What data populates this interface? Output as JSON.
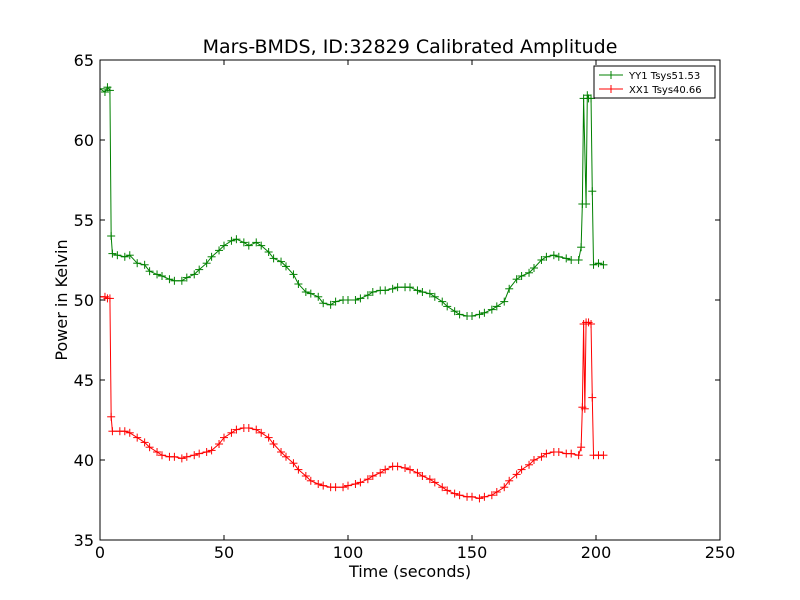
{
  "chart_data": {
    "type": "line",
    "title": "Mars-BMDS, ID:32829 Calibrated Amplitude",
    "xlabel": "Time (seconds)",
    "ylabel": "Power in Kelvin",
    "xlim": [
      0,
      250
    ],
    "ylim": [
      35,
      65
    ],
    "xticks": [
      "0",
      "50",
      "100",
      "150",
      "200",
      "250"
    ],
    "yticks": [
      "35",
      "40",
      "45",
      "50",
      "55",
      "60",
      "65"
    ],
    "grid": false,
    "legend_position": "top-right",
    "series": [
      {
        "name": "YY1 Tsys51.53",
        "color": "#008000",
        "marker": "+",
        "points": [
          [
            0,
            63.2
          ],
          [
            2,
            63.0
          ],
          [
            3,
            63.3
          ],
          [
            4,
            63.1
          ],
          [
            4.5,
            54.0
          ],
          [
            5,
            52.9
          ],
          [
            7,
            52.8
          ],
          [
            10,
            52.7
          ],
          [
            12,
            52.8
          ],
          [
            15,
            52.3
          ],
          [
            18,
            52.2
          ],
          [
            20,
            51.8
          ],
          [
            23,
            51.6
          ],
          [
            25,
            51.5
          ],
          [
            28,
            51.3
          ],
          [
            30,
            51.2
          ],
          [
            33,
            51.2
          ],
          [
            35,
            51.4
          ],
          [
            38,
            51.6
          ],
          [
            40,
            51.9
          ],
          [
            43,
            52.3
          ],
          [
            45,
            52.7
          ],
          [
            48,
            53.1
          ],
          [
            50,
            53.4
          ],
          [
            53,
            53.7
          ],
          [
            55,
            53.8
          ],
          [
            58,
            53.6
          ],
          [
            60,
            53.4
          ],
          [
            63,
            53.6
          ],
          [
            65,
            53.4
          ],
          [
            68,
            53.0
          ],
          [
            70,
            52.6
          ],
          [
            73,
            52.4
          ],
          [
            75,
            52.1
          ],
          [
            78,
            51.6
          ],
          [
            80,
            51.0
          ],
          [
            83,
            50.5
          ],
          [
            85,
            50.4
          ],
          [
            88,
            50.2
          ],
          [
            90,
            49.8
          ],
          [
            93,
            49.7
          ],
          [
            95,
            49.9
          ],
          [
            98,
            50.0
          ],
          [
            100,
            50.0
          ],
          [
            103,
            50.0
          ],
          [
            105,
            50.1
          ],
          [
            108,
            50.3
          ],
          [
            110,
            50.5
          ],
          [
            113,
            50.6
          ],
          [
            115,
            50.6
          ],
          [
            118,
            50.7
          ],
          [
            120,
            50.8
          ],
          [
            123,
            50.8
          ],
          [
            125,
            50.8
          ],
          [
            128,
            50.6
          ],
          [
            130,
            50.5
          ],
          [
            133,
            50.4
          ],
          [
            135,
            50.2
          ],
          [
            138,
            49.9
          ],
          [
            140,
            49.6
          ],
          [
            143,
            49.3
          ],
          [
            145,
            49.1
          ],
          [
            148,
            49.0
          ],
          [
            150,
            49.0
          ],
          [
            153,
            49.1
          ],
          [
            155,
            49.2
          ],
          [
            158,
            49.4
          ],
          [
            160,
            49.6
          ],
          [
            163,
            49.9
          ],
          [
            165,
            50.7
          ],
          [
            168,
            51.3
          ],
          [
            170,
            51.5
          ],
          [
            173,
            51.7
          ],
          [
            175,
            52.0
          ],
          [
            178,
            52.5
          ],
          [
            180,
            52.7
          ],
          [
            183,
            52.8
          ],
          [
            185,
            52.7
          ],
          [
            188,
            52.6
          ],
          [
            190,
            52.5
          ],
          [
            193,
            52.5
          ],
          [
            194,
            53.3
          ],
          [
            194.5,
            56.0
          ],
          [
            195,
            62.6
          ],
          [
            196,
            56.0
          ],
          [
            196.5,
            62.8
          ],
          [
            197,
            62.6
          ],
          [
            198,
            62.6
          ],
          [
            198.5,
            56.8
          ],
          [
            199,
            52.2
          ],
          [
            201,
            52.3
          ],
          [
            203,
            52.2
          ]
        ]
      },
      {
        "name": "XX1 Tsys40.66",
        "color": "#ff0000",
        "marker": "+",
        "points": [
          [
            0,
            50.2
          ],
          [
            2,
            50.2
          ],
          [
            3,
            50.1
          ],
          [
            4,
            50.1
          ],
          [
            4.5,
            42.7
          ],
          [
            5,
            41.8
          ],
          [
            8,
            41.8
          ],
          [
            10,
            41.8
          ],
          [
            12,
            41.7
          ],
          [
            15,
            41.4
          ],
          [
            18,
            41.1
          ],
          [
            20,
            40.8
          ],
          [
            23,
            40.5
          ],
          [
            25,
            40.3
          ],
          [
            28,
            40.2
          ],
          [
            30,
            40.2
          ],
          [
            33,
            40.1
          ],
          [
            35,
            40.2
          ],
          [
            38,
            40.3
          ],
          [
            40,
            40.4
          ],
          [
            43,
            40.5
          ],
          [
            45,
            40.6
          ],
          [
            48,
            41.0
          ],
          [
            50,
            41.4
          ],
          [
            53,
            41.7
          ],
          [
            55,
            41.9
          ],
          [
            58,
            42.0
          ],
          [
            60,
            42.0
          ],
          [
            63,
            41.9
          ],
          [
            65,
            41.7
          ],
          [
            68,
            41.4
          ],
          [
            70,
            41.0
          ],
          [
            73,
            40.5
          ],
          [
            75,
            40.2
          ],
          [
            78,
            39.8
          ],
          [
            80,
            39.4
          ],
          [
            83,
            39.0
          ],
          [
            85,
            38.7
          ],
          [
            88,
            38.5
          ],
          [
            90,
            38.4
          ],
          [
            93,
            38.3
          ],
          [
            95,
            38.3
          ],
          [
            98,
            38.3
          ],
          [
            100,
            38.4
          ],
          [
            103,
            38.5
          ],
          [
            105,
            38.6
          ],
          [
            108,
            38.8
          ],
          [
            110,
            39.0
          ],
          [
            113,
            39.2
          ],
          [
            115,
            39.4
          ],
          [
            118,
            39.6
          ],
          [
            120,
            39.6
          ],
          [
            123,
            39.5
          ],
          [
            125,
            39.4
          ],
          [
            128,
            39.2
          ],
          [
            130,
            39.0
          ],
          [
            133,
            38.8
          ],
          [
            135,
            38.6
          ],
          [
            138,
            38.3
          ],
          [
            140,
            38.1
          ],
          [
            143,
            37.9
          ],
          [
            145,
            37.8
          ],
          [
            148,
            37.7
          ],
          [
            150,
            37.7
          ],
          [
            153,
            37.6
          ],
          [
            155,
            37.7
          ],
          [
            158,
            37.8
          ],
          [
            160,
            38.0
          ],
          [
            163,
            38.3
          ],
          [
            165,
            38.7
          ],
          [
            168,
            39.1
          ],
          [
            170,
            39.4
          ],
          [
            173,
            39.7
          ],
          [
            175,
            40.0
          ],
          [
            178,
            40.2
          ],
          [
            180,
            40.4
          ],
          [
            183,
            40.5
          ],
          [
            185,
            40.5
          ],
          [
            188,
            40.4
          ],
          [
            190,
            40.4
          ],
          [
            193,
            40.3
          ],
          [
            194,
            40.8
          ],
          [
            194.5,
            43.3
          ],
          [
            195,
            48.5
          ],
          [
            195.5,
            43.2
          ],
          [
            196,
            48.6
          ],
          [
            197,
            48.6
          ],
          [
            198,
            48.5
          ],
          [
            198.5,
            43.9
          ],
          [
            199,
            40.3
          ],
          [
            201,
            40.3
          ],
          [
            203,
            40.3
          ]
        ]
      }
    ]
  }
}
